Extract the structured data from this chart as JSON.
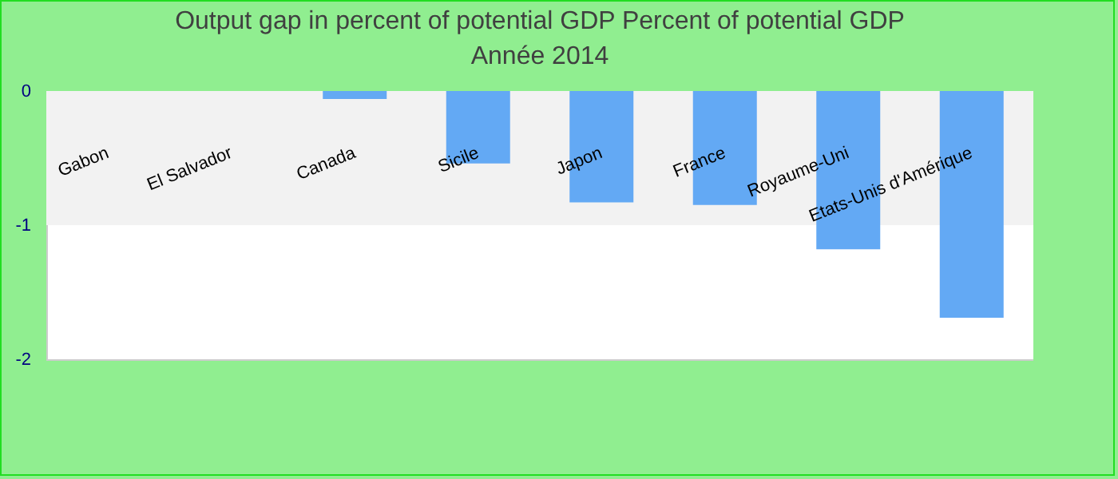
{
  "chart_data": {
    "type": "bar",
    "title": "Output gap in percent of potential GDP  Percent of potential GDP",
    "subtitle": "Année 2014",
    "categories": [
      "Gabon",
      "El Salvador",
      "Canada",
      "Sicile",
      "Japon",
      "France",
      "Royaume-Uni",
      "Etats-Unis d'Amérique"
    ],
    "values": [
      null,
      null,
      -0.06,
      -0.54,
      -0.83,
      -0.85,
      -1.18,
      -1.69
    ],
    "color": "#63a9f4",
    "ylim": [
      -2,
      0
    ],
    "yticks": [
      -2,
      -1,
      0
    ],
    "bands": [
      {
        "axis": "y",
        "from": -1,
        "to": 0,
        "color": "#f2f2f2"
      }
    ],
    "grid": false
  }
}
